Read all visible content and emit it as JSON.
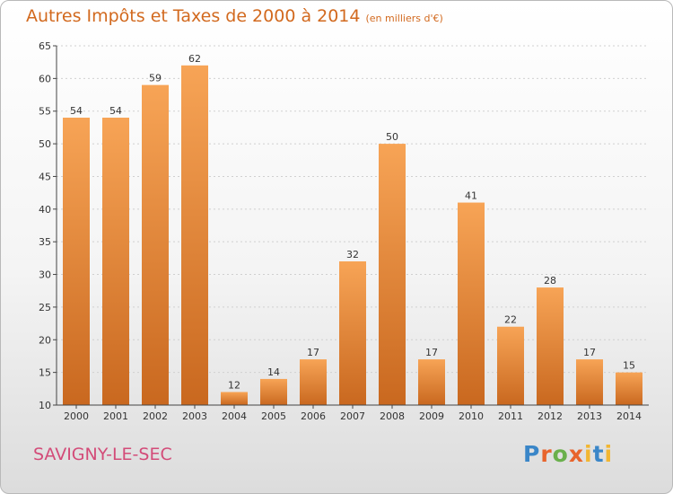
{
  "title": "Autres Impôts et Taxes de 2000 à 2014",
  "unit_note": "(en milliers d'€)",
  "commune": "SAVIGNY-LE-SEC",
  "brand": {
    "letters": [
      "P",
      "r",
      "o",
      "x",
      "i",
      "t",
      "i"
    ],
    "colors": [
      "#3a86c8",
      "#e8642c",
      "#6ab04c",
      "#e8642c",
      "#f2b632",
      "#3a86c8",
      "#f2b632"
    ]
  },
  "colors": {
    "title": "#d2691e",
    "commune": "#d34b78",
    "bar_top": "#f7a456",
    "bar_bottom": "#c9681f",
    "axis": "#444444",
    "grid": "#d0d0d0"
  },
  "chart_data": {
    "type": "bar",
    "title": "Autres Impôts et Taxes de 2000 à 2014",
    "categories": [
      "2000",
      "2001",
      "2002",
      "2003",
      "2004",
      "2005",
      "2006",
      "2007",
      "2008",
      "2009",
      "2010",
      "2011",
      "2012",
      "2013",
      "2014"
    ],
    "values": [
      54,
      54,
      59,
      62,
      12,
      14,
      17,
      32,
      50,
      17,
      41,
      22,
      28,
      17,
      15
    ],
    "ylim": [
      10,
      65
    ],
    "yticks": [
      10,
      15,
      20,
      25,
      30,
      35,
      40,
      45,
      50,
      55,
      60,
      65
    ],
    "grid": true,
    "xlabel": "",
    "ylabel": ""
  }
}
